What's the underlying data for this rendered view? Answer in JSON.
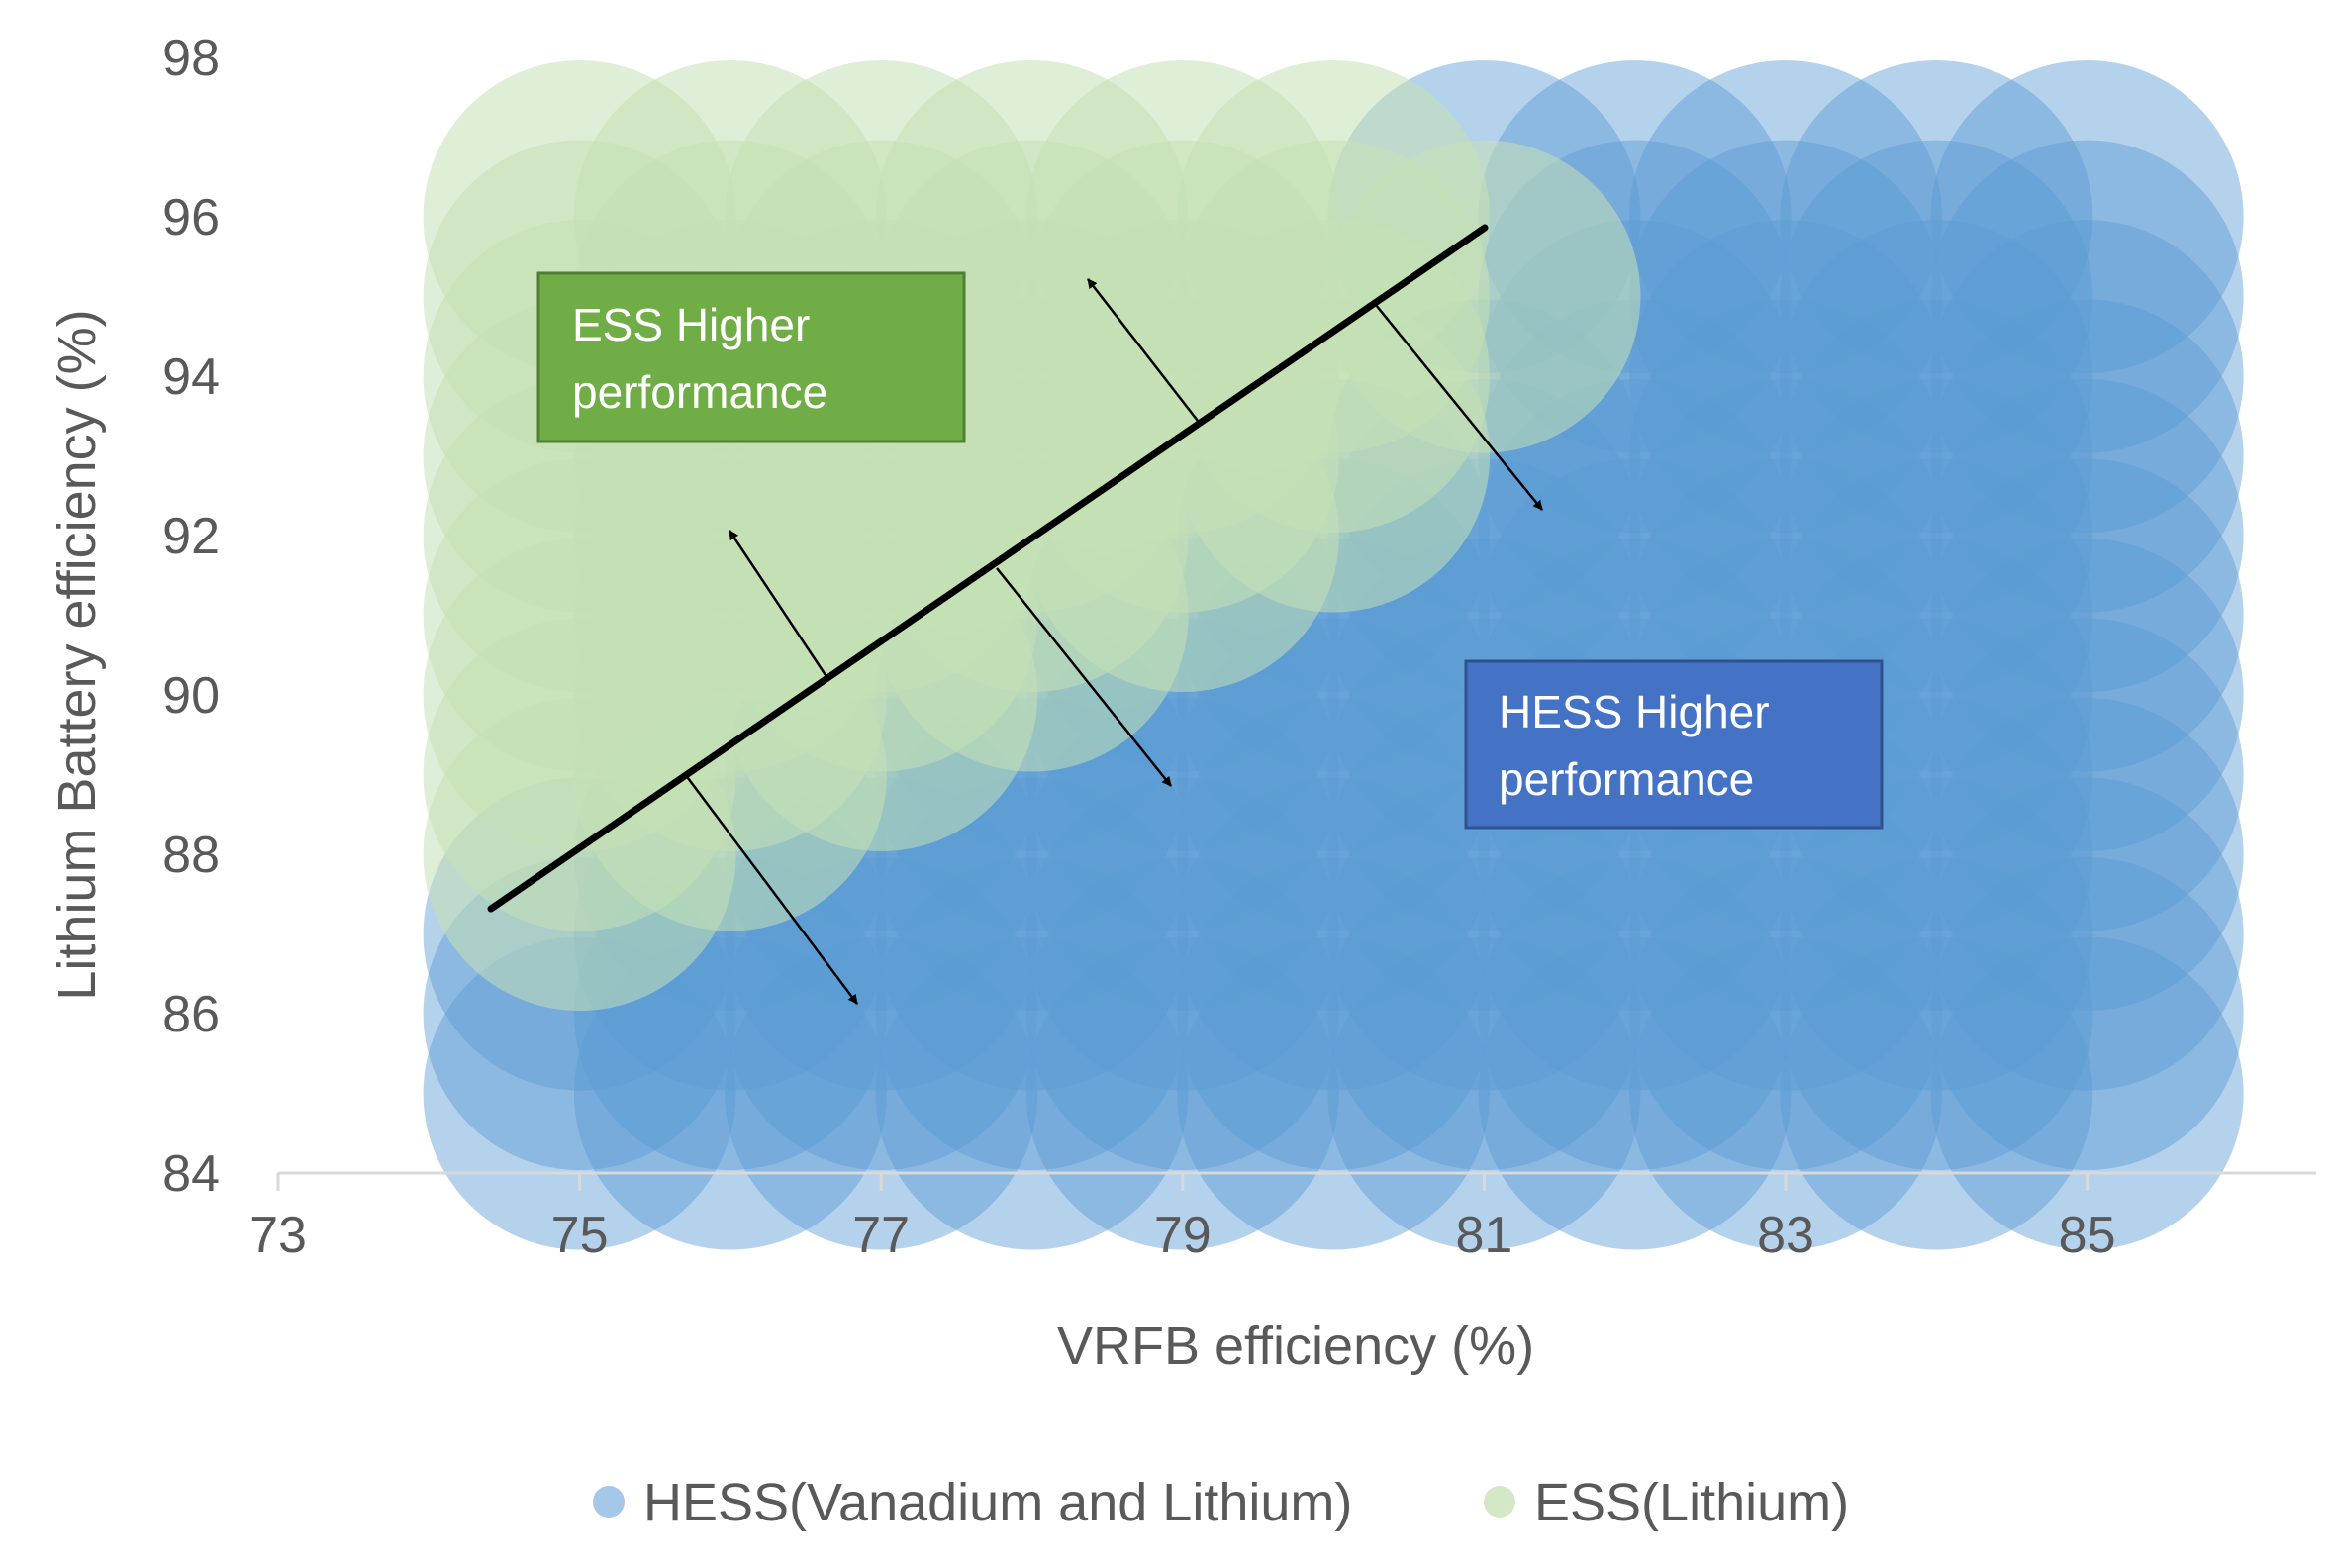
{
  "chart_data": {
    "type": "scatter",
    "variant": "bubble",
    "xlabel": "VRFB efficiency (%)",
    "ylabel": "Lithium Battery efficiency (%)",
    "xlim": [
      73,
      86.5
    ],
    "ylim": [
      84,
      98
    ],
    "xticks": [
      73,
      75,
      77,
      79,
      81,
      83,
      85
    ],
    "yticks": [
      84,
      86,
      88,
      90,
      92,
      94,
      96,
      98
    ],
    "grid": false,
    "legend": "bottom",
    "colors": {
      "hess": "#5b9bd5",
      "ess": "#c5e0b4",
      "line": "#000000",
      "ess_box": "#70ad47",
      "hess_box": "#4472c4"
    },
    "series": [
      {
        "name": "HESS(Vanadium and Lithium)",
        "points": [
          [
            75,
            85
          ],
          [
            76,
            85
          ],
          [
            77,
            85
          ],
          [
            78,
            85
          ],
          [
            79,
            85
          ],
          [
            80,
            85
          ],
          [
            81,
            85
          ],
          [
            82,
            85
          ],
          [
            83,
            85
          ],
          [
            84,
            85
          ],
          [
            85,
            85
          ],
          [
            75,
            86
          ],
          [
            76,
            86
          ],
          [
            77,
            86
          ],
          [
            78,
            86
          ],
          [
            79,
            86
          ],
          [
            80,
            86
          ],
          [
            81,
            86
          ],
          [
            82,
            86
          ],
          [
            83,
            86
          ],
          [
            84,
            86
          ],
          [
            85,
            86
          ],
          [
            75,
            87
          ],
          [
            76,
            87
          ],
          [
            77,
            87
          ],
          [
            78,
            87
          ],
          [
            79,
            87
          ],
          [
            80,
            87
          ],
          [
            81,
            87
          ],
          [
            82,
            87
          ],
          [
            83,
            87
          ],
          [
            84,
            87
          ],
          [
            85,
            87
          ],
          [
            76,
            88
          ],
          [
            77,
            88
          ],
          [
            78,
            88
          ],
          [
            79,
            88
          ],
          [
            80,
            88
          ],
          [
            81,
            88
          ],
          [
            82,
            88
          ],
          [
            83,
            88
          ],
          [
            84,
            88
          ],
          [
            85,
            88
          ],
          [
            77,
            89
          ],
          [
            78,
            89
          ],
          [
            79,
            89
          ],
          [
            80,
            89
          ],
          [
            81,
            89
          ],
          [
            82,
            89
          ],
          [
            83,
            89
          ],
          [
            84,
            89
          ],
          [
            85,
            89
          ],
          [
            78,
            90
          ],
          [
            79,
            90
          ],
          [
            80,
            90
          ],
          [
            81,
            90
          ],
          [
            82,
            90
          ],
          [
            83,
            90
          ],
          [
            84,
            90
          ],
          [
            85,
            90
          ],
          [
            79,
            91
          ],
          [
            80,
            91
          ],
          [
            81,
            91
          ],
          [
            82,
            91
          ],
          [
            83,
            91
          ],
          [
            84,
            91
          ],
          [
            85,
            91
          ],
          [
            80,
            92
          ],
          [
            81,
            92
          ],
          [
            82,
            92
          ],
          [
            83,
            92
          ],
          [
            84,
            92
          ],
          [
            85,
            92
          ],
          [
            81,
            93
          ],
          [
            82,
            93
          ],
          [
            83,
            93
          ],
          [
            84,
            93
          ],
          [
            85,
            93
          ],
          [
            82,
            94
          ],
          [
            83,
            94
          ],
          [
            84,
            94
          ],
          [
            85,
            94
          ],
          [
            82,
            95
          ],
          [
            83,
            95
          ],
          [
            84,
            95
          ],
          [
            85,
            95
          ],
          [
            81,
            96
          ],
          [
            82,
            96
          ],
          [
            83,
            96
          ],
          [
            84,
            96
          ],
          [
            85,
            96
          ]
        ]
      },
      {
        "name": "ESS(Lithium)",
        "points": [
          [
            75,
            96
          ],
          [
            76,
            96
          ],
          [
            77,
            96
          ],
          [
            78,
            96
          ],
          [
            79,
            96
          ],
          [
            80,
            96
          ],
          [
            75,
            95
          ],
          [
            76,
            95
          ],
          [
            77,
            95
          ],
          [
            78,
            95
          ],
          [
            79,
            95
          ],
          [
            80,
            95
          ],
          [
            81,
            95
          ],
          [
            75,
            94
          ],
          [
            76,
            94
          ],
          [
            77,
            94
          ],
          [
            78,
            94
          ],
          [
            79,
            94
          ],
          [
            80,
            94
          ],
          [
            75,
            93
          ],
          [
            76,
            93
          ],
          [
            77,
            93
          ],
          [
            78,
            93
          ],
          [
            79,
            93
          ],
          [
            80,
            93
          ],
          [
            75,
            92
          ],
          [
            76,
            92
          ],
          [
            77,
            92
          ],
          [
            78,
            92
          ],
          [
            79,
            92
          ],
          [
            75,
            91
          ],
          [
            76,
            91
          ],
          [
            77,
            91
          ],
          [
            78,
            91
          ],
          [
            75,
            90
          ],
          [
            76,
            90
          ],
          [
            77,
            90
          ],
          [
            75,
            89
          ],
          [
            76,
            89
          ],
          [
            75,
            88
          ]
        ]
      }
    ],
    "annotations": {
      "ess_box": {
        "lines": [
          "ESS Higher",
          "performance"
        ]
      },
      "hess_box": {
        "lines": [
          "HESS Higher",
          "performance"
        ]
      }
    }
  }
}
